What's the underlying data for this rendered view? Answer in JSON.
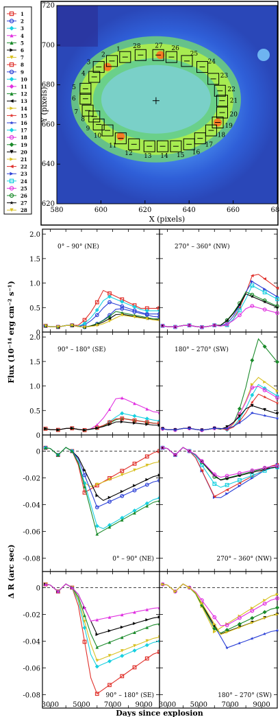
{
  "legend": {
    "items": [
      {
        "label": "1",
        "color": "#e0302a",
        "marker": "square"
      },
      {
        "label": "2",
        "color": "#2a3fd6",
        "marker": "circle"
      },
      {
        "label": "3",
        "color": "#18d0e0",
        "marker": "diamond"
      },
      {
        "label": "4",
        "color": "#e030e0",
        "marker": "triangle-up"
      },
      {
        "label": "5",
        "color": "#1a8a2a",
        "marker": "triangle-up"
      },
      {
        "label": "6",
        "color": "#000000",
        "marker": "triangle-right"
      },
      {
        "label": "7",
        "color": "#d8c020",
        "marker": "triangle-down"
      },
      {
        "label": "8",
        "color": "#e0302a",
        "marker": "square"
      },
      {
        "label": "9",
        "color": "#2a3fd6",
        "marker": "circle"
      },
      {
        "label": "10",
        "color": "#18d0e0",
        "marker": "diamond"
      },
      {
        "label": "11",
        "color": "#e030e0",
        "marker": "diamond"
      },
      {
        "label": "12",
        "color": "#1a8a2a",
        "marker": "triangle-up"
      },
      {
        "label": "13",
        "color": "#000000",
        "marker": "triangle-left"
      },
      {
        "label": "14",
        "color": "#d8c020",
        "marker": "triangle-right"
      },
      {
        "label": "15",
        "color": "#e0302a",
        "marker": "star"
      },
      {
        "label": "16",
        "color": "#2a3fd6",
        "marker": "star"
      },
      {
        "label": "17",
        "color": "#18d0e0",
        "marker": "diamond"
      },
      {
        "label": "18",
        "color": "#e030e0",
        "marker": "circle"
      },
      {
        "label": "19",
        "color": "#1a8a2a",
        "marker": "diamond"
      },
      {
        "label": "20",
        "color": "#000000",
        "marker": "triangle-down"
      },
      {
        "label": "21",
        "color": "#d8c020",
        "marker": "triangle-right"
      },
      {
        "label": "22",
        "color": "#e0302a",
        "marker": "triangle-left"
      },
      {
        "label": "23",
        "color": "#2a3fd6",
        "marker": "triangle-right"
      },
      {
        "label": "24",
        "color": "#18d0e0",
        "marker": "square"
      },
      {
        "label": "25",
        "color": "#e030e0",
        "marker": "circle"
      },
      {
        "label": "26",
        "color": "#1a8a2a",
        "marker": "circle"
      },
      {
        "label": "27",
        "color": "#000000",
        "marker": "star"
      },
      {
        "label": "28",
        "color": "#d8c020",
        "marker": "triangle-down"
      }
    ]
  },
  "chart_data": [
    {
      "type": "heatmap",
      "xlabel": "X (pixels)",
      "ylabel": "Y (pixels)",
      "xlim": [
        580,
        680
      ],
      "ylim": [
        620,
        720
      ],
      "xticks": [
        580,
        600,
        620,
        640,
        660,
        680
      ],
      "yticks": [
        620,
        640,
        660,
        680,
        700,
        720
      ],
      "center": [
        625,
        672
      ],
      "regions": [
        {
          "n": "1",
          "x": 611,
          "y": 694
        },
        {
          "n": "2",
          "x": 605,
          "y": 692
        },
        {
          "n": "3",
          "x": 599,
          "y": 689
        },
        {
          "n": "4",
          "x": 597,
          "y": 684
        },
        {
          "n": "5",
          "x": 593,
          "y": 678
        },
        {
          "n": "6",
          "x": 593,
          "y": 673
        },
        {
          "n": "7",
          "x": 594,
          "y": 667
        },
        {
          "n": "8",
          "x": 597,
          "y": 664
        },
        {
          "n": "9",
          "x": 599,
          "y": 660
        },
        {
          "n": "10",
          "x": 603,
          "y": 657
        },
        {
          "n": "11",
          "x": 609,
          "y": 653
        },
        {
          "n": "12",
          "x": 615,
          "y": 650
        },
        {
          "n": "13",
          "x": 622,
          "y": 649
        },
        {
          "n": "14",
          "x": 628,
          "y": 649
        },
        {
          "n": "15",
          "x": 634,
          "y": 649
        },
        {
          "n": "16",
          "x": 640,
          "y": 650
        },
        {
          "n": "17",
          "x": 645,
          "y": 653
        },
        {
          "n": "18",
          "x": 650,
          "y": 657
        },
        {
          "n": "19",
          "x": 653,
          "y": 661
        },
        {
          "n": "20",
          "x": 655,
          "y": 666
        },
        {
          "n": "21",
          "x": 655,
          "y": 672
        },
        {
          "n": "22",
          "x": 654,
          "y": 677
        },
        {
          "n": "23",
          "x": 651,
          "y": 683
        },
        {
          "n": "24",
          "x": 646,
          "y": 689
        },
        {
          "n": "25",
          "x": 639,
          "y": 692
        },
        {
          "n": "26",
          "x": 632,
          "y": 694
        },
        {
          "n": "27",
          "x": 626,
          "y": 695
        },
        {
          "n": "28",
          "x": 618,
          "y": 695
        }
      ]
    },
    {
      "type": "line",
      "panels": [
        {
          "label": "0° – 90° (NE)"
        },
        {
          "label": "270° – 360° (NW)"
        },
        {
          "label": "90° – 180° (SE)"
        },
        {
          "label": "180° – 270° (SW)"
        }
      ],
      "ylabel": "Flux (10⁻¹⁴ erg cm⁻² s⁻¹)",
      "ylim": [
        0,
        2.1
      ],
      "yticks": [
        0,
        0.5,
        1.0,
        1.5,
        2.0
      ],
      "xlim": [
        2500,
        10000
      ],
      "series": {
        "NE": [
          {
            "region": "1",
            "peak": 0.85,
            "peak_x": 6400
          },
          {
            "region": "9",
            "peak": 0.62,
            "peak_x": 6700
          },
          {
            "region": "10",
            "peak": 0.75,
            "peak_x": 6600
          },
          {
            "region": "2",
            "peak": 0.5,
            "peak_x": 7300
          },
          {
            "region": "12",
            "peak": 0.42,
            "peak_x": 7200
          },
          {
            "region": "13",
            "peak": 0.38,
            "peak_x": 7300
          },
          {
            "region": "28",
            "peak": 0.35,
            "peak_x": 7500
          }
        ],
        "NW": [
          {
            "region": "22",
            "peak": 1.25,
            "peak_x": 8500
          },
          {
            "region": "23",
            "peak": 1.05,
            "peak_x": 8300
          },
          {
            "region": "24",
            "peak": 0.95,
            "peak_x": 8400
          },
          {
            "region": "26",
            "peak": 0.82,
            "peak_x": 8000
          },
          {
            "region": "27",
            "peak": 0.78,
            "peak_x": 8000
          },
          {
            "region": "25",
            "peak": 0.55,
            "peak_x": 8200
          }
        ],
        "SE": [
          {
            "region": "4",
            "peak": 0.8,
            "peak_x": 7300
          },
          {
            "region": "3",
            "peak": 0.45,
            "peak_x": 7500
          },
          {
            "region": "5",
            "peak": 0.35,
            "peak_x": 7400
          },
          {
            "region": "8",
            "peak": 0.35,
            "peak_x": 7300
          },
          {
            "region": "6",
            "peak": 0.28,
            "peak_x": 7300
          }
        ],
        "SW": [
          {
            "region": "19",
            "peak": 2.0,
            "peak_x": 8700
          },
          {
            "region": "21",
            "peak": 1.22,
            "peak_x": 8600
          },
          {
            "region": "17",
            "peak": 1.05,
            "peak_x": 8700
          },
          {
            "region": "18",
            "peak": 1.05,
            "peak_x": 8500
          },
          {
            "region": "15",
            "peak": 0.85,
            "peak_x": 8700
          },
          {
            "region": "20",
            "peak": 0.62,
            "peak_x": 8200
          },
          {
            "region": "16",
            "peak": 0.45,
            "peak_x": 8400
          }
        ]
      }
    },
    {
      "type": "line",
      "panels": [
        {
          "label": "0° – 90° (NE)"
        },
        {
          "label": "270° – 360° (NW)"
        },
        {
          "label": "90° – 180° (SE)"
        },
        {
          "label": "180° – 270° (SW)"
        }
      ],
      "ylabel": "Δ R (arc sec)",
      "xlabel": "Days since explosion",
      "ylim": [
        -0.09,
        0.012
      ],
      "yticks": [
        0,
        -0.02,
        -0.04,
        -0.06,
        -0.08
      ],
      "xticks": [
        3000,
        5000,
        7000,
        9000
      ],
      "xlim": [
        2500,
        10000
      ],
      "series": {
        "NE": [
          {
            "region": "1",
            "min": -0.031,
            "min_x": 5200,
            "end": 0.0
          },
          {
            "region": "7",
            "min": -0.028,
            "min_x": 5300,
            "end": -0.008
          },
          {
            "region": "6",
            "min": -0.038,
            "min_x": 6200,
            "end": -0.018
          },
          {
            "region": "9",
            "min": -0.042,
            "min_x": 6000,
            "end": -0.022
          },
          {
            "region": "10",
            "min": -0.06,
            "min_x": 6100,
            "end": -0.035
          },
          {
            "region": "12",
            "min": -0.062,
            "min_x": 6000,
            "end": -0.037
          }
        ],
        "NW": [
          {
            "region": "23",
            "min": -0.037,
            "min_x": 6100,
            "end": -0.01
          },
          {
            "region": "22",
            "min": -0.034,
            "min_x": 6000,
            "end": -0.01
          },
          {
            "region": "24",
            "min": -0.028,
            "min_x": 6200,
            "end": -0.012
          },
          {
            "region": "26",
            "min": -0.022,
            "min_x": 6200,
            "end": -0.011
          },
          {
            "region": "27",
            "min": -0.022,
            "min_x": 6300,
            "end": -0.012
          },
          {
            "region": "25",
            "min": -0.02,
            "min_x": 6200,
            "end": -0.011
          }
        ],
        "SE": [
          {
            "region": "8",
            "min": -0.081,
            "min_x": 5800,
            "end": -0.048
          },
          {
            "region": "3",
            "min": -0.06,
            "min_x": 5800,
            "end": -0.04
          },
          {
            "region": "7",
            "min": -0.055,
            "min_x": 5900,
            "end": -0.037
          },
          {
            "region": "5",
            "min": -0.045,
            "min_x": 5900,
            "end": -0.027
          },
          {
            "region": "6",
            "min": -0.035,
            "min_x": 6000,
            "end": -0.022
          },
          {
            "region": "4",
            "min": -0.025,
            "min_x": 5600,
            "end": -0.015
          }
        ],
        "SW": [
          {
            "region": "16",
            "min": -0.045,
            "min_x": 6800,
            "end": -0.032
          },
          {
            "region": "20",
            "min": -0.035,
            "min_x": 6300,
            "end": -0.02
          },
          {
            "region": "14",
            "min": -0.033,
            "min_x": 6000,
            "end": -0.005
          },
          {
            "region": "19",
            "min": -0.035,
            "min_x": 6200,
            "end": -0.015
          },
          {
            "region": "18",
            "min": -0.03,
            "min_x": 6500,
            "end": -0.008
          },
          {
            "region": "21",
            "min": -0.035,
            "min_x": 6400,
            "end": -0.02
          }
        ]
      }
    }
  ]
}
